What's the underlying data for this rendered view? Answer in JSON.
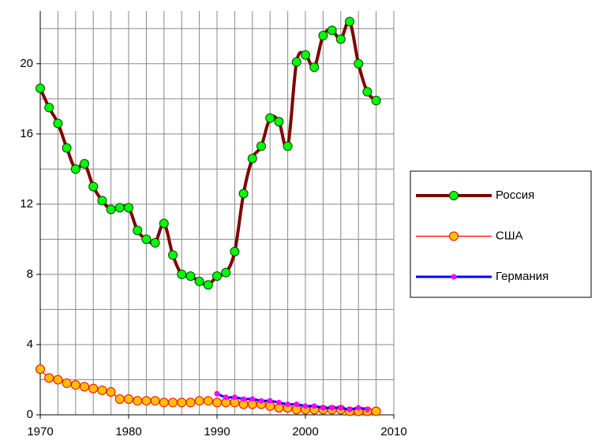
{
  "chart_data": {
    "type": "line",
    "xlim": [
      1970,
      2010
    ],
    "xticks": [
      1970,
      1980,
      1990,
      2000,
      2010
    ],
    "ylim": [
      0,
      23
    ],
    "yticks": [
      0,
      4,
      8,
      12,
      16,
      20
    ],
    "xgrid": [
      1972,
      1974,
      1976,
      1978,
      1980,
      1982,
      1984,
      1986,
      1988,
      1990,
      1992,
      1994,
      1996,
      1998,
      2000,
      2002,
      2004,
      2006,
      2008,
      2010
    ],
    "ygrid": [
      2,
      4,
      6,
      8,
      10,
      12,
      14,
      16,
      18,
      20,
      22
    ],
    "grid": true,
    "legend": "right",
    "series": [
      {
        "name": "Россия",
        "color": "#800000",
        "marker_color": "#00ff00",
        "x": [
          1970,
          1971,
          1972,
          1973,
          1974,
          1975,
          1976,
          1977,
          1978,
          1979,
          1980,
          1981,
          1982,
          1983,
          1984,
          1985,
          1986,
          1987,
          1988,
          1989,
          1990,
          1991,
          1992,
          1993,
          1994,
          1995,
          1996,
          1997,
          1998,
          1999,
          2000,
          2001,
          2002,
          2003,
          2004,
          2005,
          2006,
          2007,
          2008
        ],
        "values": [
          18.6,
          17.5,
          16.6,
          15.2,
          14.0,
          14.3,
          13.0,
          12.2,
          11.7,
          11.8,
          11.8,
          10.5,
          10.0,
          9.8,
          10.9,
          9.1,
          8.0,
          7.9,
          7.6,
          7.4,
          7.9,
          8.1,
          9.3,
          12.6,
          14.6,
          15.3,
          16.9,
          16.7,
          15.3,
          20.1,
          20.5,
          19.8,
          21.6,
          21.9,
          21.4,
          22.4,
          20.0,
          18.4,
          17.9
        ]
      },
      {
        "name": "США",
        "color": "#ff0000",
        "marker_color": "#ffc000",
        "x": [
          1970,
          1971,
          1972,
          1973,
          1974,
          1975,
          1976,
          1977,
          1978,
          1979,
          1980,
          1981,
          1982,
          1983,
          1984,
          1985,
          1986,
          1987,
          1988,
          1989,
          1990,
          1991,
          1992,
          1993,
          1994,
          1995,
          1996,
          1997,
          1998,
          1999,
          2000,
          2001,
          2002,
          2003,
          2004,
          2005,
          2006,
          2007,
          2008
        ],
        "values": [
          2.6,
          2.1,
          2.0,
          1.8,
          1.7,
          1.6,
          1.5,
          1.4,
          1.3,
          0.9,
          0.9,
          0.8,
          0.8,
          0.8,
          0.7,
          0.7,
          0.7,
          0.7,
          0.8,
          0.8,
          0.7,
          0.7,
          0.7,
          0.6,
          0.6,
          0.6,
          0.5,
          0.4,
          0.4,
          0.3,
          0.3,
          0.3,
          0.3,
          0.3,
          0.3,
          0.2,
          0.2,
          0.2,
          0.2
        ]
      },
      {
        "name": "Германия",
        "color": "#0000ff",
        "marker_color": "#ff00ff",
        "x": [
          1990,
          1991,
          1992,
          1993,
          1994,
          1995,
          1996,
          1997,
          1998,
          1999,
          2000,
          2001,
          2002,
          2003,
          2004,
          2005,
          2006,
          2007
        ],
        "values": [
          1.2,
          1.0,
          1.0,
          0.9,
          0.9,
          0.8,
          0.8,
          0.7,
          0.6,
          0.6,
          0.5,
          0.5,
          0.4,
          0.4,
          0.4,
          0.3,
          0.4,
          0.3
        ]
      }
    ]
  }
}
